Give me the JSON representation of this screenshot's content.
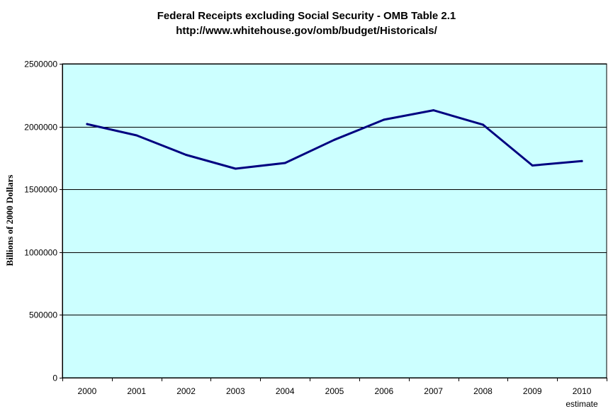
{
  "chart_data": {
    "type": "line",
    "title": "Federal Receipts excluding Social Security - OMB Table 2.1",
    "subtitle": "http://www.whitehouse.gov/omb/budget/Historicals/",
    "xlabel": "",
    "xlabel_note": "estimate",
    "ylabel": "Billions of 2000 Dollars",
    "categories": [
      "2000",
      "2001",
      "2002",
      "2003",
      "2004",
      "2005",
      "2006",
      "2007",
      "2008",
      "2009",
      "2010"
    ],
    "series": [
      {
        "name": "Federal Receipts excluding Social Security",
        "values": [
          2020000,
          1930000,
          1775000,
          1665000,
          1710000,
          1895000,
          2055000,
          2130000,
          2015000,
          1690000,
          1725000
        ]
      }
    ],
    "ylim": [
      0,
      2500000
    ],
    "yticks": [
      0,
      500000,
      1000000,
      1500000,
      2000000,
      2500000
    ],
    "ytick_labels": [
      "0",
      "500000",
      "1000000",
      "1500000",
      "2000000",
      "2500000"
    ],
    "grid": true,
    "legend": "none"
  },
  "colors": {
    "plot_background": "#ccffff",
    "line": "#000080",
    "gridline": "#000000",
    "axis": "#000000"
  }
}
